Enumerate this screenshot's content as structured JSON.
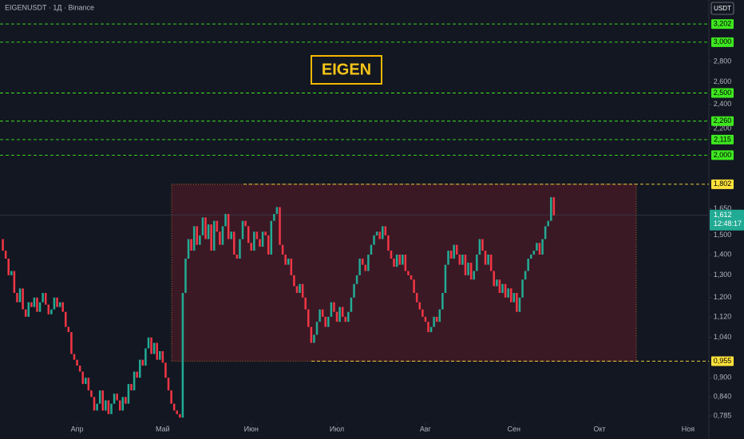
{
  "header": {
    "symbol": "EIGENUSDT · 1Д · Binance",
    "currency": "USDT"
  },
  "chart_data": {
    "type": "candlestick",
    "annotation": "EIGEN",
    "up_color": "#22ab94",
    "down_color": "#f23645",
    "log_scale": true,
    "xlim": [
      -1,
      247
    ],
    "ylim": [
      0.765,
      3.49
    ],
    "xticks": [
      {
        "value": 26,
        "label": "Апр"
      },
      {
        "value": 56,
        "label": "Май"
      },
      {
        "value": 87,
        "label": "Июн"
      },
      {
        "value": 117,
        "label": "Июл"
      },
      {
        "value": 148,
        "label": "Авг"
      },
      {
        "value": 179,
        "label": "Сен"
      },
      {
        "value": 209,
        "label": "Окт"
      },
      {
        "value": 240,
        "label": "Ноя"
      }
    ],
    "yticks": [
      {
        "value": 2.8,
        "label": "2,800"
      },
      {
        "value": 2.6,
        "label": "2,600"
      },
      {
        "value": 2.4,
        "label": "2,400"
      },
      {
        "value": 2.2,
        "label": "2,200"
      },
      {
        "value": 1.65,
        "label": "1,650"
      },
      {
        "value": 1.5,
        "label": "1,500"
      },
      {
        "value": 1.4,
        "label": "1,400"
      },
      {
        "value": 1.3,
        "label": "1,300"
      },
      {
        "value": 1.2,
        "label": "1,200"
      },
      {
        "value": 1.12,
        "label": "1,120"
      },
      {
        "value": 1.04,
        "label": "1,040"
      },
      {
        "value": 0.9,
        "label": "0,900"
      },
      {
        "value": 0.84,
        "label": "0,840"
      },
      {
        "value": 0.785,
        "label": "0,785"
      }
    ],
    "levels": [
      {
        "value": 3.202,
        "label": "3,202",
        "color": "#3ee81f"
      },
      {
        "value": 3.0,
        "label": "3,000",
        "color": "#3ee81f"
      },
      {
        "value": 2.5,
        "label": "2,500",
        "color": "#3ee81f"
      },
      {
        "value": 2.26,
        "label": "2,260",
        "color": "#3ee81f"
      },
      {
        "value": 2.115,
        "label": "2,115",
        "color": "#3ee81f"
      },
      {
        "value": 2.0,
        "label": "2,000",
        "color": "#3ee81f"
      },
      {
        "value": 1.802,
        "label": "1,802",
        "color": "#ffe23b"
      },
      {
        "value": 0.955,
        "label": "0,955",
        "color": "#ffe23b"
      }
    ],
    "last_price": {
      "value": 1.612,
      "label": "1,612",
      "countdown": "12:48:17"
    },
    "open": [
      1.48,
      1.42,
      1.38,
      1.3,
      1.32,
      1.22,
      1.18,
      1.24,
      1.15,
      1.12,
      1.18,
      1.16,
      1.2,
      1.14,
      1.18,
      1.22,
      1.17,
      1.13,
      1.15,
      1.2,
      1.16,
      1.18,
      1.14,
      1.08,
      1.06,
      0.98,
      0.96,
      0.94,
      0.92,
      0.88,
      0.9,
      0.86,
      0.84,
      0.8,
      0.82,
      0.86,
      0.8,
      0.83,
      0.79,
      0.82,
      0.85,
      0.83,
      0.8,
      0.84,
      0.82,
      0.88,
      0.86,
      0.92,
      0.9,
      0.96,
      0.94,
      1.0,
      1.04,
      0.98,
      1.02,
      0.96,
      0.99,
      0.95,
      0.9,
      0.86,
      0.82,
      0.8,
      0.79,
      0.78,
      1.22,
      1.38,
      1.48,
      1.42,
      1.55,
      1.45,
      1.5,
      1.6,
      1.48,
      1.56,
      1.42,
      1.58,
      1.52,
      1.45,
      1.55,
      1.62,
      1.48,
      1.52,
      1.4,
      1.38,
      1.48,
      1.58,
      1.55,
      1.46,
      1.42,
      1.52,
      1.48,
      1.44,
      1.52,
      1.5,
      1.4,
      1.58,
      1.62,
      1.66,
      1.45,
      1.4,
      1.35,
      1.38,
      1.3,
      1.25,
      1.22,
      1.26,
      1.2,
      1.15,
      1.08,
      1.02,
      1.05,
      1.1,
      1.15,
      1.12,
      1.08,
      1.12,
      1.18,
      1.14,
      1.1,
      1.16,
      1.12,
      1.1,
      1.14,
      1.2,
      1.26,
      1.3,
      1.38,
      1.35,
      1.32,
      1.4,
      1.45,
      1.5,
      1.52,
      1.48,
      1.55,
      1.5,
      1.42,
      1.38,
      1.34,
      1.4,
      1.35,
      1.4,
      1.32,
      1.3,
      1.28,
      1.22,
      1.18,
      1.15,
      1.12,
      1.1,
      1.06,
      1.08,
      1.12,
      1.1,
      1.15,
      1.22,
      1.35,
      1.42,
      1.38,
      1.45,
      1.4,
      1.35,
      1.4,
      1.3,
      1.36,
      1.28,
      1.32,
      1.4,
      1.48,
      1.42,
      1.35,
      1.4,
      1.32,
      1.25,
      1.28,
      1.22,
      1.26,
      1.2,
      1.24,
      1.18,
      1.22,
      1.14,
      1.2,
      1.28,
      1.32,
      1.38,
      1.4,
      1.42,
      1.46,
      1.4,
      1.48,
      1.55,
      1.58,
      1.72
    ],
    "close": [
      1.42,
      1.38,
      1.3,
      1.32,
      1.22,
      1.18,
      1.24,
      1.15,
      1.12,
      1.18,
      1.16,
      1.2,
      1.14,
      1.18,
      1.22,
      1.17,
      1.13,
      1.15,
      1.2,
      1.16,
      1.18,
      1.14,
      1.08,
      1.06,
      0.98,
      0.96,
      0.94,
      0.92,
      0.88,
      0.9,
      0.86,
      0.84,
      0.8,
      0.82,
      0.86,
      0.8,
      0.83,
      0.79,
      0.82,
      0.85,
      0.83,
      0.8,
      0.84,
      0.82,
      0.88,
      0.86,
      0.92,
      0.9,
      0.96,
      0.94,
      1.0,
      1.04,
      0.98,
      1.02,
      0.96,
      0.99,
      0.95,
      0.9,
      0.86,
      0.82,
      0.8,
      0.79,
      0.78,
      1.22,
      1.38,
      1.48,
      1.42,
      1.55,
      1.45,
      1.5,
      1.6,
      1.48,
      1.56,
      1.42,
      1.58,
      1.52,
      1.45,
      1.55,
      1.62,
      1.48,
      1.52,
      1.4,
      1.38,
      1.48,
      1.58,
      1.55,
      1.46,
      1.42,
      1.52,
      1.48,
      1.44,
      1.52,
      1.5,
      1.4,
      1.58,
      1.62,
      1.66,
      1.45,
      1.4,
      1.35,
      1.38,
      1.3,
      1.25,
      1.22,
      1.26,
      1.2,
      1.15,
      1.08,
      1.02,
      1.05,
      1.1,
      1.15,
      1.12,
      1.08,
      1.12,
      1.18,
      1.14,
      1.1,
      1.16,
      1.12,
      1.1,
      1.14,
      1.2,
      1.26,
      1.3,
      1.38,
      1.35,
      1.32,
      1.4,
      1.45,
      1.5,
      1.52,
      1.48,
      1.55,
      1.5,
      1.42,
      1.38,
      1.34,
      1.4,
      1.35,
      1.4,
      1.32,
      1.3,
      1.28,
      1.22,
      1.18,
      1.15,
      1.12,
      1.1,
      1.06,
      1.08,
      1.12,
      1.1,
      1.15,
      1.22,
      1.35,
      1.42,
      1.38,
      1.45,
      1.4,
      1.35,
      1.4,
      1.3,
      1.36,
      1.28,
      1.32,
      1.4,
      1.48,
      1.42,
      1.35,
      1.4,
      1.32,
      1.25,
      1.28,
      1.22,
      1.26,
      1.2,
      1.24,
      1.18,
      1.22,
      1.14,
      1.2,
      1.28,
      1.32,
      1.38,
      1.4,
      1.42,
      1.46,
      1.4,
      1.48,
      1.55,
      1.58,
      1.72,
      1.612
    ]
  }
}
